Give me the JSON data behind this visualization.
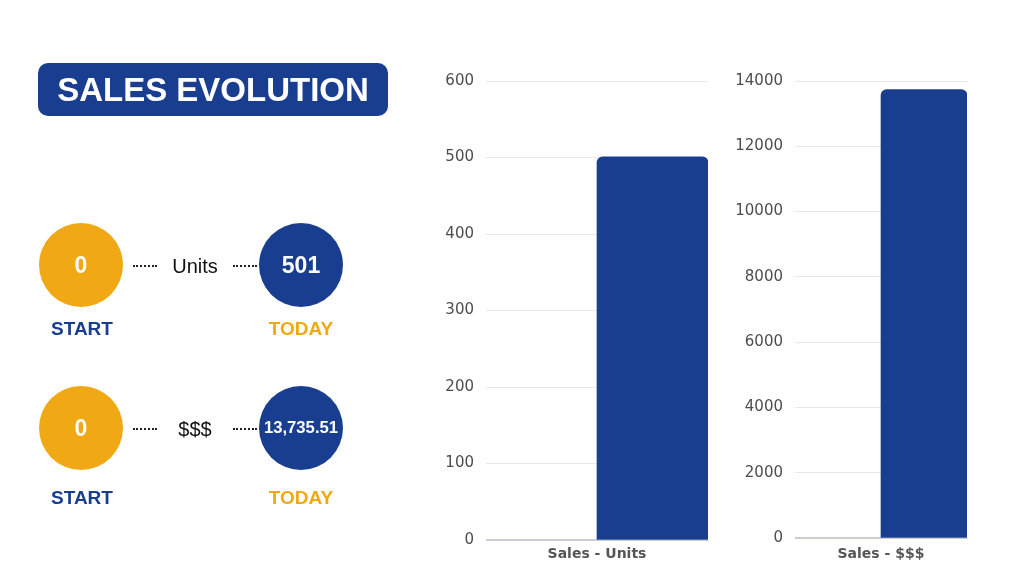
{
  "chart_data": [
    {
      "type": "other",
      "title": "SALES EVOLUTION",
      "annotations": [
        "0",
        "Units",
        "501",
        "START",
        "TODAY",
        "0",
        "$$$",
        "13,735.51",
        "START",
        "TODAY"
      ]
    },
    {
      "type": "bar",
      "categories": [
        null,
        null
      ],
      "values": [
        0,
        501
      ],
      "color": "#1a3e8f",
      "xlabel": "Sales - Units",
      "ylim": [
        0,
        600
      ],
      "yticks": [
        0,
        100,
        200,
        300,
        400,
        500,
        600
      ],
      "grid": "y",
      "tick_labels": "y"
    },
    {
      "type": "bar",
      "categories": [
        null,
        null
      ],
      "values": [
        0,
        13735.51
      ],
      "color": "#1a3e8f",
      "xlabel": "Sales - $$$",
      "ylim": [
        0,
        14000
      ],
      "yticks": [
        0,
        2000,
        4000,
        6000,
        8000,
        10000,
        12000,
        14000
      ],
      "grid": "y",
      "tick_labels": "y"
    }
  ]
}
